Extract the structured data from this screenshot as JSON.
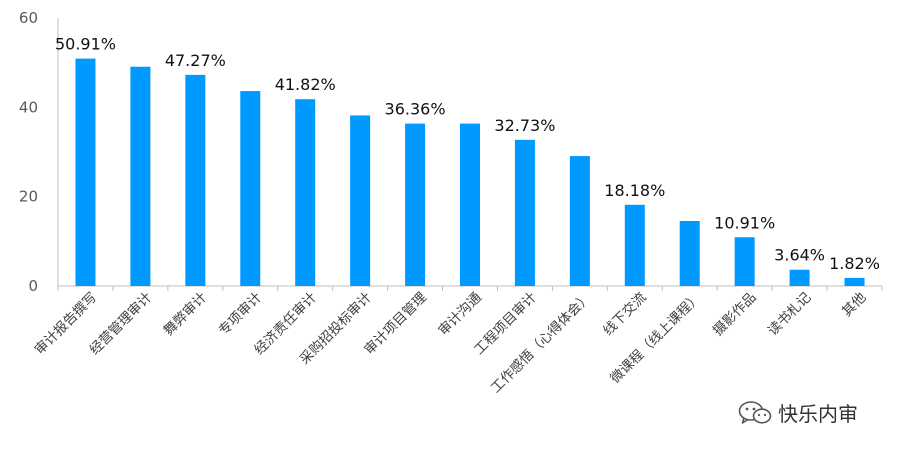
{
  "chart_data": {
    "type": "bar",
    "categories": [
      "审计报告撰写",
      "经营管理审计",
      "舞弊审计",
      "专项审计",
      "经济责任审计",
      "采购招投标审计",
      "审计项目管理",
      "审计沟通",
      "工程项目审计",
      "工作感悟（心得体会）",
      "线下交流",
      "微课程（线上课程）",
      "摄影作品",
      "读书札记",
      "其他"
    ],
    "values": [
      50.91,
      49.09,
      47.27,
      43.64,
      41.82,
      38.18,
      36.36,
      36.36,
      32.73,
      29.09,
      18.18,
      14.55,
      10.91,
      3.64,
      1.82
    ],
    "data_labels": [
      "50.91%",
      "",
      "47.27%",
      "",
      "41.82%",
      "",
      "36.36%",
      "",
      "32.73%",
      "",
      "18.18%",
      "",
      "10.91%",
      "3.64%",
      "1.82%"
    ],
    "ylim": [
      0,
      60
    ],
    "yticks": [
      "0",
      "20",
      "40",
      "60"
    ],
    "grid": false,
    "bar_color": "#0099FF"
  },
  "watermark": {
    "text": "快乐内审",
    "icon": "wechat-icon"
  }
}
